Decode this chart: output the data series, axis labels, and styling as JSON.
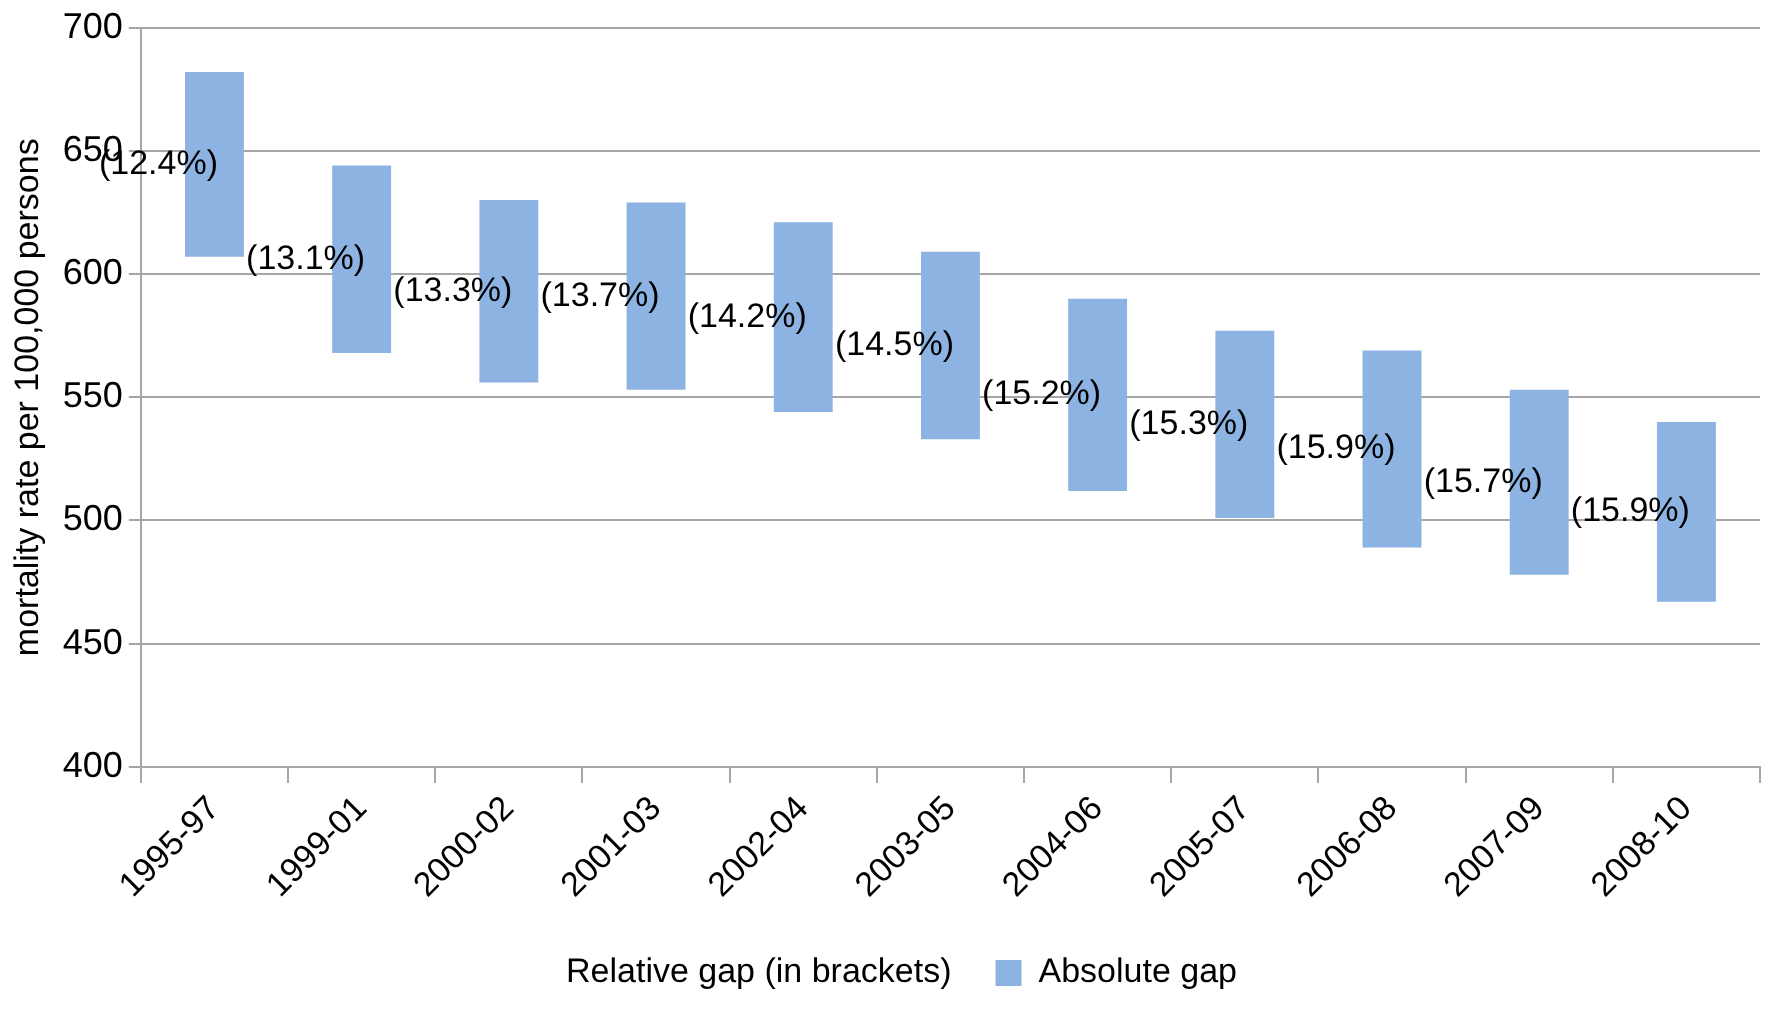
{
  "chart_data": {
    "type": "bar",
    "ylabel": "mortality rate per 100,000 persons",
    "categories": [
      "1995-97",
      "1999-01",
      "2000-02",
      "2001-03",
      "2002-04",
      "2003-05",
      "2004-06",
      "2005-07",
      "2006-08",
      "2007-09",
      "2008-10"
    ],
    "series": [
      {
        "name": "Absolute gap",
        "color": "#8db3e2",
        "values": [
          75,
          76,
          74,
          76,
          77,
          76,
          78,
          76,
          80,
          75,
          73
        ],
        "base": [
          607,
          568,
          556,
          553,
          544,
          533,
          512,
          501,
          489,
          478,
          467
        ]
      }
    ],
    "ylim": [
      400,
      700
    ],
    "yticks": [
      400,
      450,
      500,
      550,
      600,
      650,
      700
    ],
    "grid": "y",
    "legend": "bottom",
    "annotations": [
      "(12.4%)",
      "(13.1%)",
      "(13.3%)",
      "(13.7%)",
      "(14.2%)",
      "(14.5%)",
      "(15.2%)",
      "(15.3%)",
      "(15.9%)",
      "(15.7%)",
      "(15.9%)",
      "Relative gap (in brackets)"
    ]
  }
}
